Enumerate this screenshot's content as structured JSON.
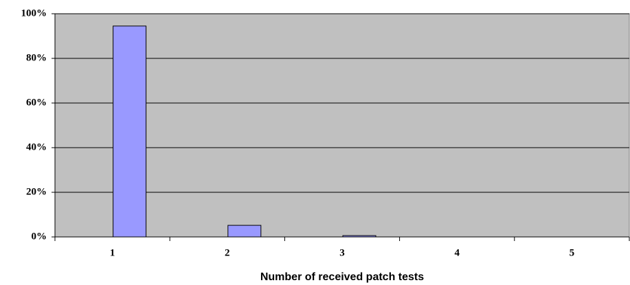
{
  "chart_data": {
    "type": "bar",
    "x_label": "Number of received patch tests",
    "categories": [
      "1",
      "2",
      "3",
      "4",
      "5"
    ],
    "values": [
      94.5,
      5.2,
      0.6,
      0,
      0
    ],
    "color": "#9999ff",
    "ylim": [
      0,
      100
    ],
    "yticks": [
      {
        "value": 0,
        "label": "0%"
      },
      {
        "value": 20,
        "label": "20%"
      },
      {
        "value": 40,
        "label": "40%"
      },
      {
        "value": 60,
        "label": "60%"
      },
      {
        "value": 80,
        "label": "80%"
      },
      {
        "value": 100,
        "label": "100%"
      }
    ],
    "grid": true
  }
}
